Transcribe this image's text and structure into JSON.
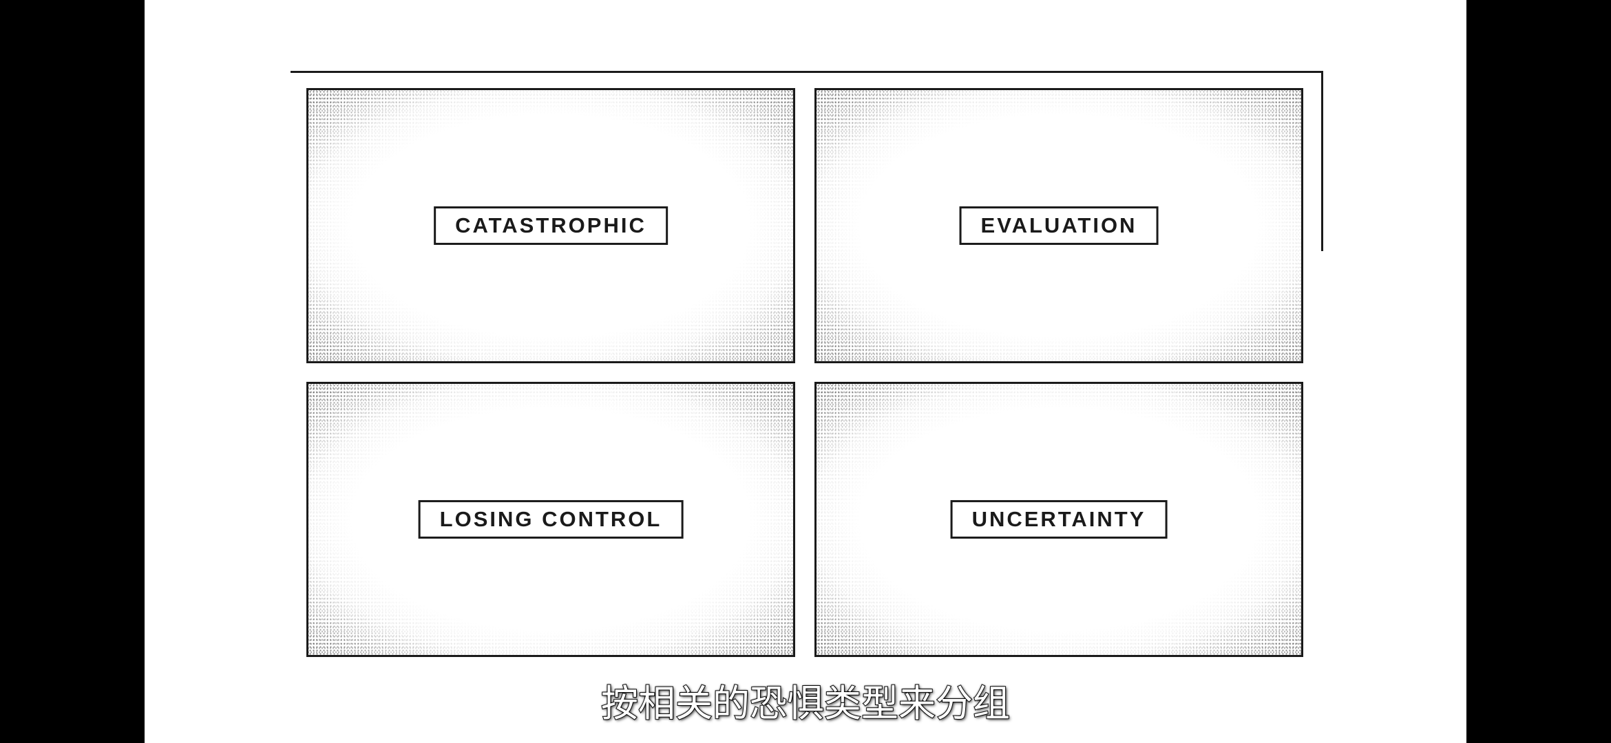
{
  "panels": {
    "top_left": {
      "label": "CATASTROPHIC"
    },
    "top_right": {
      "label": "EVALUATION"
    },
    "bottom_left": {
      "label": "LOSING CONTROL"
    },
    "bottom_right": {
      "label": "UNCERTAINTY"
    }
  },
  "subtitle": {
    "text": "按相关的恐惧类型来分组"
  },
  "colors": {
    "background": "#ffffff",
    "letterbox": "#000000",
    "ink": "#1a1a1a",
    "subtitle_fill": "#ffffff"
  }
}
